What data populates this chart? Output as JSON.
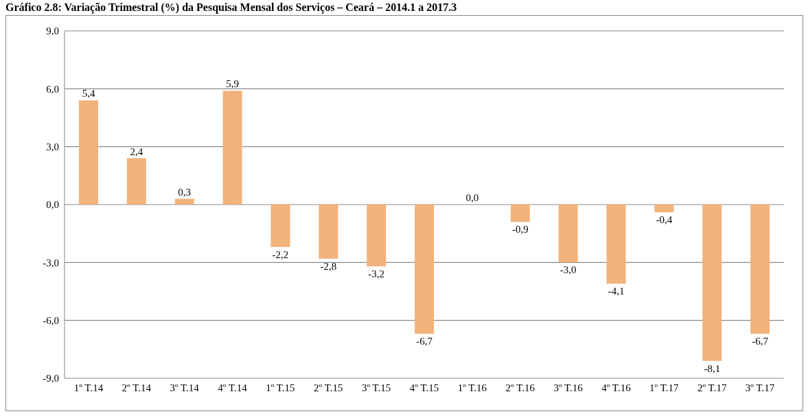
{
  "chart_data": {
    "type": "bar",
    "title": "Gráfico 2.8: Variação Trimestral (%) da Pesquisa Mensal dos Serviços – Ceará – 2014.1 a 2017.3",
    "categories": [
      "1º T.14",
      "2º T.14",
      "3º T.14",
      "4º T.14",
      "1º T.15",
      "2º T.15",
      "3º T.15",
      "4º T.15",
      "1º T.16",
      "2º T.16",
      "3º T.16",
      "4º T.16",
      "1º T.17",
      "2º T.17",
      "3º T.17"
    ],
    "values": [
      5.4,
      2.4,
      0.3,
      5.9,
      -2.2,
      -2.8,
      -3.2,
      -6.7,
      0.0,
      -0.9,
      -3.0,
      -4.1,
      -0.4,
      -8.1,
      -6.7
    ],
    "value_labels": [
      "5,4",
      "2,4",
      "0,3",
      "5,9",
      "-2,2",
      "-2,8",
      "-3,2",
      "-6,7",
      "0,0",
      "-0,9",
      "-3,0",
      "-4,1",
      "-0,4",
      "-8,1",
      "-6,7"
    ],
    "color": "#f2b27c",
    "ylim": [
      -9,
      9
    ],
    "yticks": [
      {
        "value": -9,
        "label": "-9,0"
      },
      {
        "value": -6,
        "label": "-6,0"
      },
      {
        "value": -3,
        "label": "-3,0"
      },
      {
        "value": 0,
        "label": "0,0"
      },
      {
        "value": 3,
        "label": "3,0"
      },
      {
        "value": 6,
        "label": "6,0"
      },
      {
        "value": 9,
        "label": "9,0"
      }
    ],
    "grid": "y"
  }
}
